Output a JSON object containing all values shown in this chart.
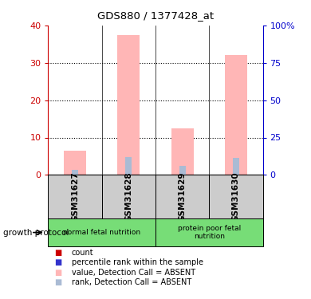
{
  "title": "GDS880 / 1377428_at",
  "samples": [
    "GSM31627",
    "GSM31628",
    "GSM31629",
    "GSM31630"
  ],
  "value_absent": [
    6.5,
    37.5,
    12.5,
    32.0
  ],
  "rank_absent": [
    3.2,
    12.0,
    6.0,
    11.5
  ],
  "count_red": [
    0.3,
    0.3,
    0.3,
    0.3
  ],
  "ylim_left": [
    0,
    40
  ],
  "ylim_right": [
    0,
    100
  ],
  "yticks_left": [
    0,
    10,
    20,
    30,
    40
  ],
  "yticks_right": [
    0,
    25,
    50,
    75,
    100
  ],
  "ytick_right_labels": [
    "0",
    "25",
    "50",
    "75",
    "100%"
  ],
  "color_value_absent": "#FFB6B6",
  "color_rank_absent": "#AABBD4",
  "color_count": "#CC0000",
  "color_rank": "#3333CC",
  "left_axis_color": "#CC0000",
  "right_axis_color": "#0000CC",
  "bar_width": 0.42,
  "rank_bar_width": 0.12,
  "count_bar_width": 0.04,
  "grid_ticks": [
    10,
    20,
    30
  ],
  "group1_samples": [
    0,
    1
  ],
  "group2_samples": [
    2,
    3
  ],
  "group1_label": "normal fetal nutrition",
  "group2_label": "protein poor fetal\nnutrition",
  "group_color": "#77DD77",
  "sample_box_color": "#CCCCCC",
  "legend_items": [
    {
      "color": "#CC0000",
      "label": "count"
    },
    {
      "color": "#3333CC",
      "label": "percentile rank within the sample"
    },
    {
      "color": "#FFB6B6",
      "label": "value, Detection Call = ABSENT"
    },
    {
      "color": "#AABBD4",
      "label": "rank, Detection Call = ABSENT"
    }
  ],
  "growth_protocol_label": "growth protocol"
}
